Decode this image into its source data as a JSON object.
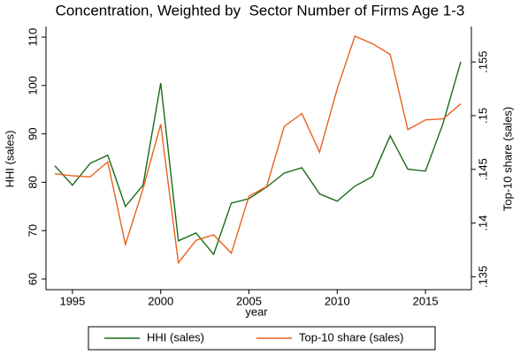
{
  "chart_data": {
    "type": "line",
    "title": "Concentration, Weighted by  Sector Number of Firms Age 1-3",
    "x_label": "year",
    "y_label": "HHI (sales)",
    "y2_label": "Top-10 share (sales)",
    "x": [
      1994,
      1995,
      1996,
      1997,
      1998,
      1999,
      2000,
      2001,
      2002,
      2003,
      2004,
      2005,
      2006,
      2007,
      2008,
      2009,
      2010,
      2011,
      2012,
      2013,
      2014,
      2015,
      2016,
      2017
    ],
    "series": [
      {
        "name": "HHI (sales)",
        "color": "#1a6b1a",
        "axis": "y",
        "values": [
          83.4,
          79.4,
          83.9,
          85.6,
          75.0,
          79.4,
          100.5,
          67.9,
          69.5,
          65.1,
          75.7,
          76.6,
          79.0,
          81.9,
          83.0,
          77.6,
          76.1,
          79.2,
          81.2,
          89.6,
          82.7,
          82.3,
          92.2,
          104.9
        ]
      },
      {
        "name": "Top-10 share (sales)",
        "color": "#e8621c",
        "axis": "y2",
        "values": [
          0.1446,
          0.1444,
          0.1443,
          0.1457,
          0.138,
          0.1432,
          0.1492,
          0.1363,
          0.1384,
          0.1389,
          0.1372,
          0.1425,
          0.1434,
          0.149,
          0.1502,
          0.1466,
          0.1525,
          0.1574,
          0.1567,
          0.1557,
          0.1487,
          0.1496,
          0.1497,
          0.1511
        ]
      }
    ],
    "xlim": [
      1993.5,
      2017.6
    ],
    "xticks": [
      1995,
      2000,
      2005,
      2010,
      2015
    ],
    "ylim": [
      57.8,
      112.2
    ],
    "yticks": [
      60,
      70,
      80,
      90,
      100,
      110
    ],
    "y2lim": [
      0.1338,
      0.1583
    ],
    "y2ticks": [
      {
        "value": 0.135,
        "label": ".135"
      },
      {
        "value": 0.14,
        "label": ".14"
      },
      {
        "value": 0.145,
        "label": ".145"
      },
      {
        "value": 0.15,
        "label": ".15"
      },
      {
        "value": 0.155,
        "label": ".155"
      }
    ],
    "legend": "bottom"
  }
}
